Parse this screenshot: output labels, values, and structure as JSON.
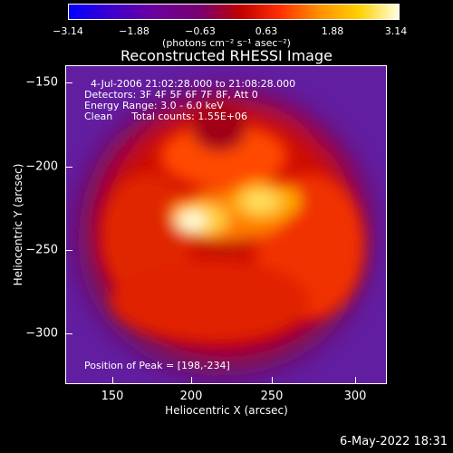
{
  "colorbar": {
    "ticks": [
      "−3.14",
      "−1.88",
      "−0.63",
      "0.63",
      "1.88",
      "3.14"
    ],
    "units": "(photons cm⁻² s⁻¹ asec⁻²)"
  },
  "title": "Reconstructed RHESSI Image",
  "info": {
    "time_range": "4-Jul-2006 21:02:28.000 to 21:08:28.000",
    "detectors": "Detectors: 3F 4F 5F 6F 7F 8F, Att 0",
    "energy": "Energy Range: 3.0 - 6.0 keV",
    "clean": "Clean      Total counts: 1.55E+06",
    "peak": "Position of Peak = [198,-234]"
  },
  "axes": {
    "ylabel": "Heliocentric Y (arcsec)",
    "xlabel": "Heliocentric X (arcsec)",
    "yticks": [
      "−150",
      "−200",
      "−250",
      "−300"
    ],
    "xticks": [
      "150",
      "200",
      "250",
      "300"
    ]
  },
  "footer": {
    "date": "6-May-2022 18:31"
  }
}
